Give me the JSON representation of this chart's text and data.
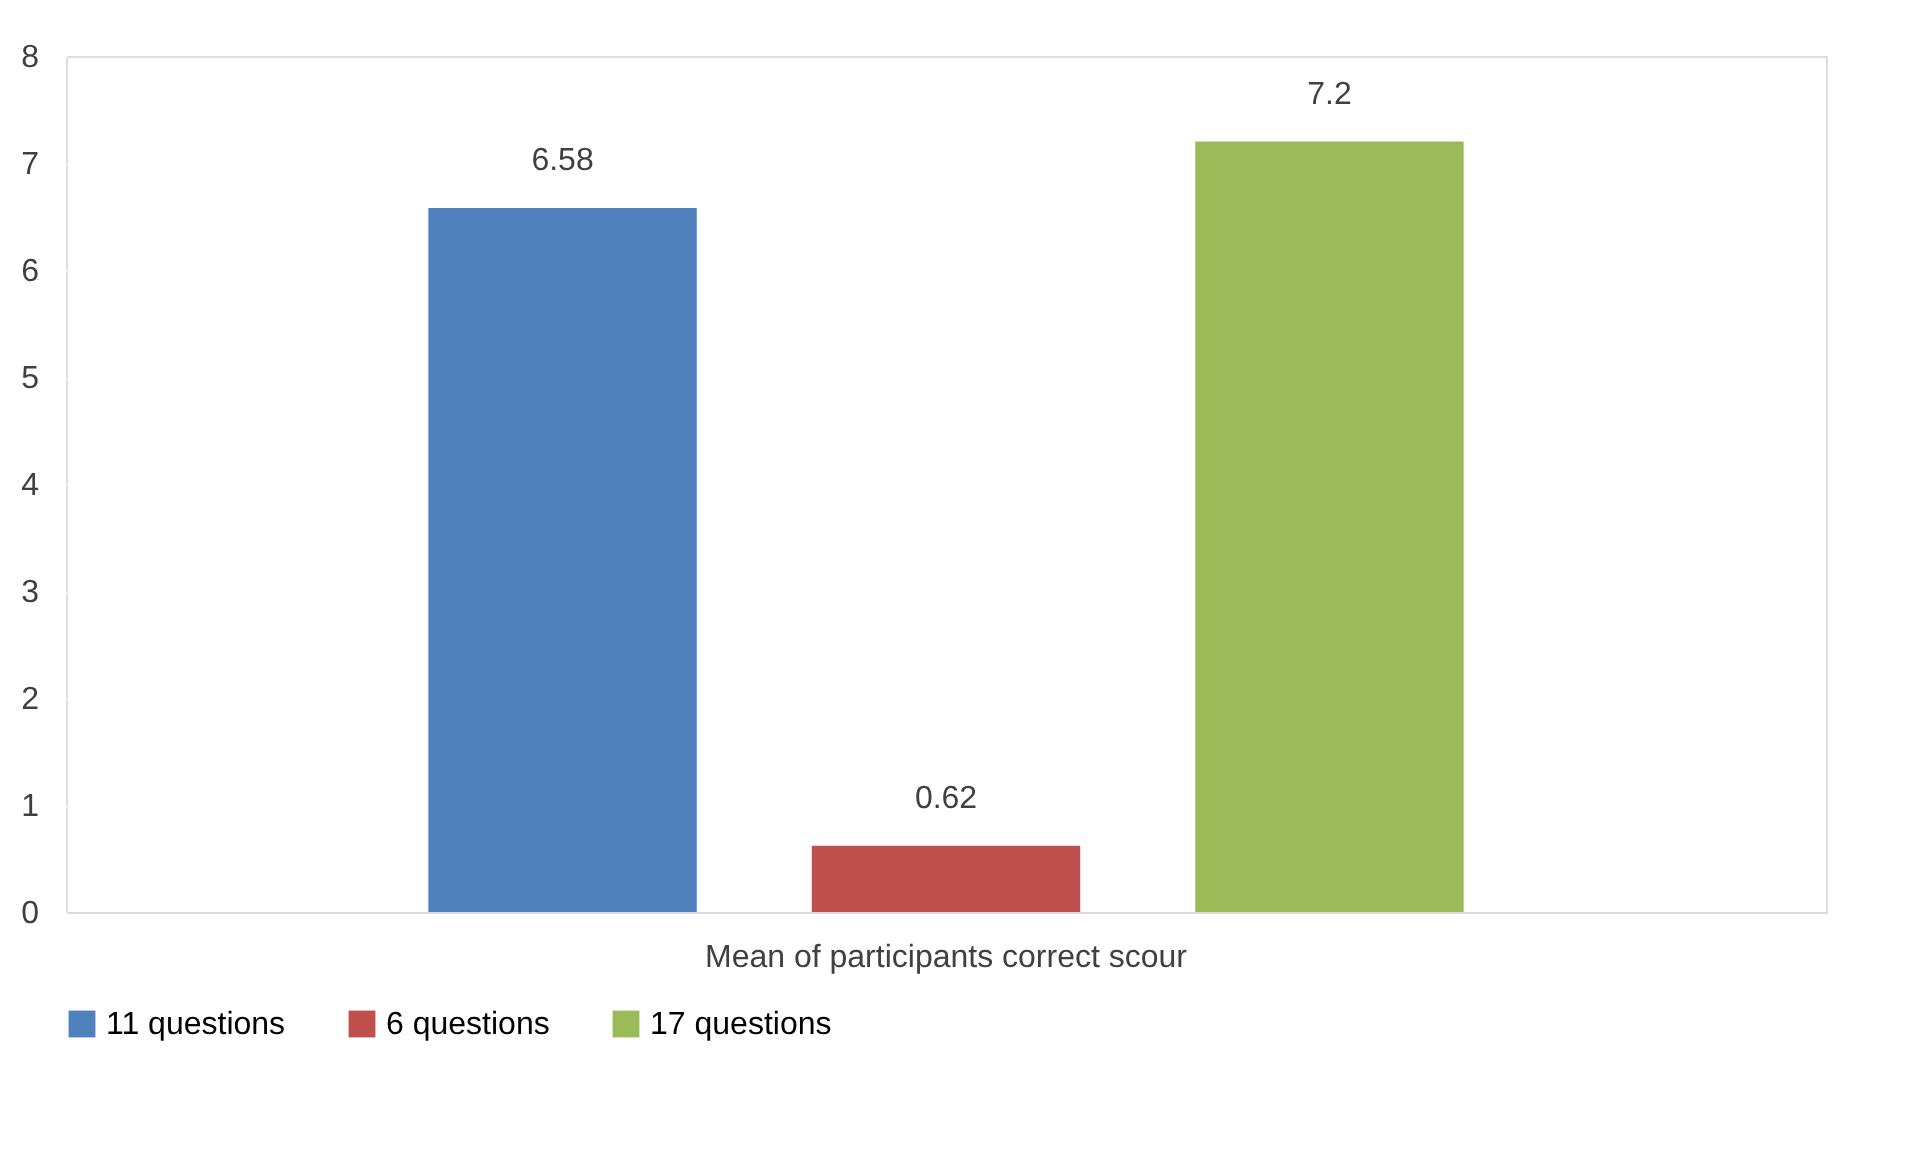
{
  "chart_data": {
    "type": "bar",
    "categories": [
      "Mean of participants correct scour"
    ],
    "series": [
      {
        "name": "11 questions",
        "color": "#4f81bd",
        "values": [
          6.58
        ]
      },
      {
        "name": "6 questions",
        "color": "#c0504d",
        "values": [
          0.62
        ]
      },
      {
        "name": "17 questions",
        "color": "#9bbb59",
        "values": [
          7.2
        ]
      }
    ],
    "ylim": [
      0,
      8
    ],
    "yticks": [
      0,
      1,
      2,
      3,
      4,
      5,
      6,
      7,
      8
    ],
    "grid": false,
    "legend": "bottom",
    "data_labels": true
  }
}
